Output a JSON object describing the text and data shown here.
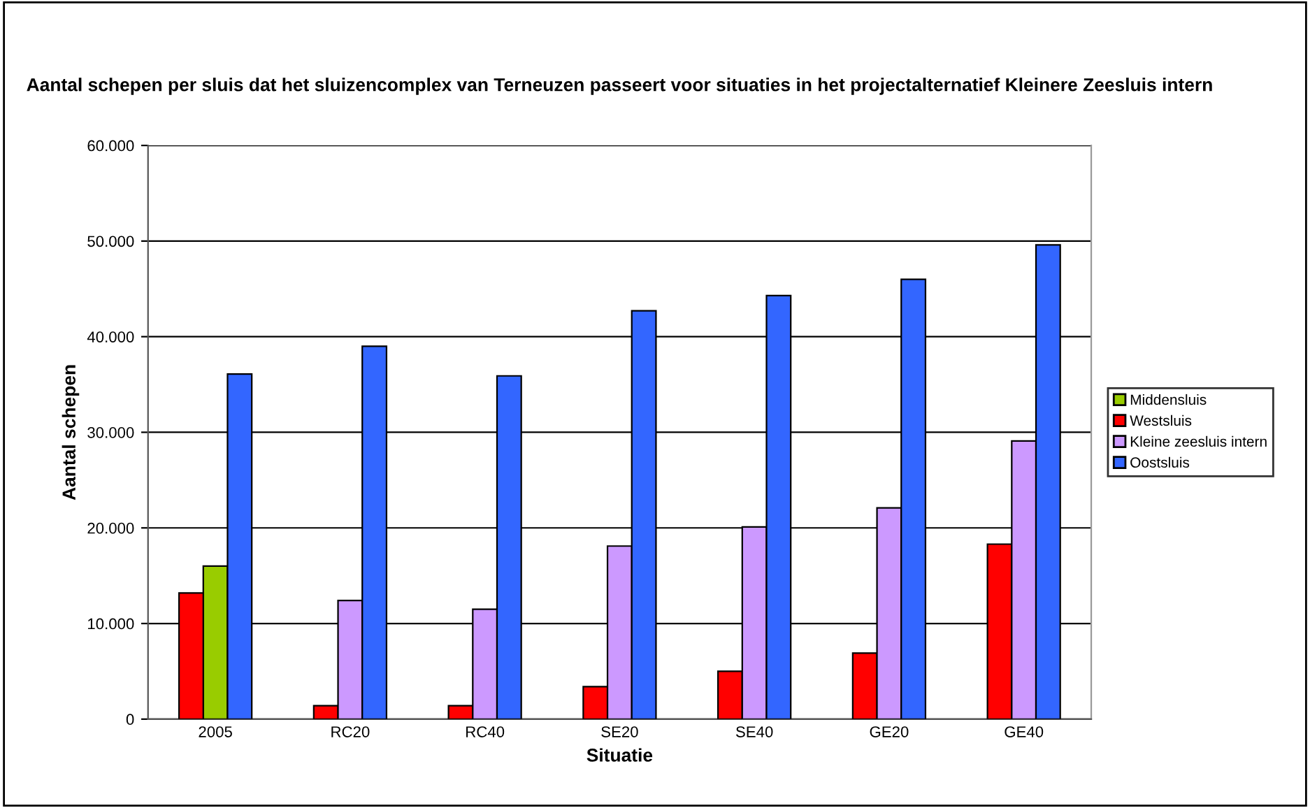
{
  "chart_data": {
    "type": "bar",
    "title": "Aantal schepen per sluis dat het sluizencomplex van Terneuzen passeert voor situaties in het projectalternatief Kleinere Zeesluis intern",
    "xlabel": "Situatie",
    "ylabel": "Aantal schepen",
    "categories": [
      "2005",
      "RC20",
      "RC40",
      "SE20",
      "SE40",
      "GE20",
      "GE40"
    ],
    "series": [
      {
        "name": "Middensluis",
        "color": "#99cc00",
        "values": [
          16000,
          null,
          null,
          null,
          null,
          null,
          null
        ]
      },
      {
        "name": "Westsluis",
        "color": "#ff0000",
        "values": [
          13200,
          1400,
          1400,
          3400,
          5000,
          6900,
          18300
        ]
      },
      {
        "name": "Kleine zeesluis intern",
        "color": "#cc99ff",
        "values": [
          null,
          12400,
          11500,
          18100,
          20100,
          22100,
          29100
        ]
      },
      {
        "name": "Oostsluis",
        "color": "#3366ff",
        "values": [
          36100,
          39000,
          35900,
          42700,
          44300,
          46000,
          49600
        ]
      }
    ],
    "ylim": [
      0,
      60000
    ],
    "yticks": [
      {
        "value": 0,
        "label": "0"
      },
      {
        "value": 10000,
        "label": "10.000"
      },
      {
        "value": 20000,
        "label": "20.000"
      },
      {
        "value": 30000,
        "label": "30.000"
      },
      {
        "value": 40000,
        "label": "40.000"
      },
      {
        "value": 50000,
        "label": "50.000"
      },
      {
        "value": 60000,
        "label": "60.000"
      }
    ],
    "grid": "y",
    "legend": "right"
  }
}
